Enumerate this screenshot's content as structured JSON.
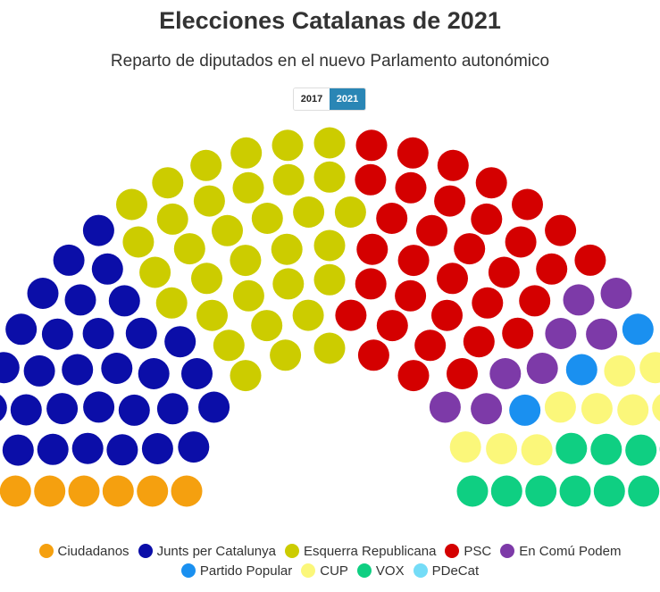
{
  "header": {
    "title": "Elecciones Catalanas de 2021",
    "subtitle": "Reparto de diputados en el nuevo Parlamento autonómico"
  },
  "year_toggle": {
    "options": [
      "2017",
      "2021"
    ],
    "selected": "2021"
  },
  "chart_data": {
    "type": "parliament",
    "title": "Elecciones Catalanas de 2021",
    "subtitle": "Reparto de diputados en el nuevo Parlamento autonómico",
    "total_seats": 135,
    "legend_position": "bottom",
    "parties": [
      {
        "name": "Ciudadanos",
        "seats": 6,
        "color": "#f5a00f"
      },
      {
        "name": "Junts per Catalunya",
        "seats": 32,
        "color": "#0b0ea8"
      },
      {
        "name": "Esquerra Republicana",
        "seats": 33,
        "color": "#cccc00"
      },
      {
        "name": "PSC",
        "seats": 33,
        "color": "#d40000"
      },
      {
        "name": "En Comú Podem",
        "seats": 8,
        "color": "#7d3aa8"
      },
      {
        "name": "Partido Popular",
        "seats": 3,
        "color": "#1a90f0"
      },
      {
        "name": "CUP",
        "seats": 9,
        "color": "#fbf77a"
      },
      {
        "name": "VOX",
        "seats": 11,
        "color": "#0fcf82"
      },
      {
        "name": "PDeCat",
        "seats": 0,
        "color": "#74dcf7"
      }
    ]
  }
}
